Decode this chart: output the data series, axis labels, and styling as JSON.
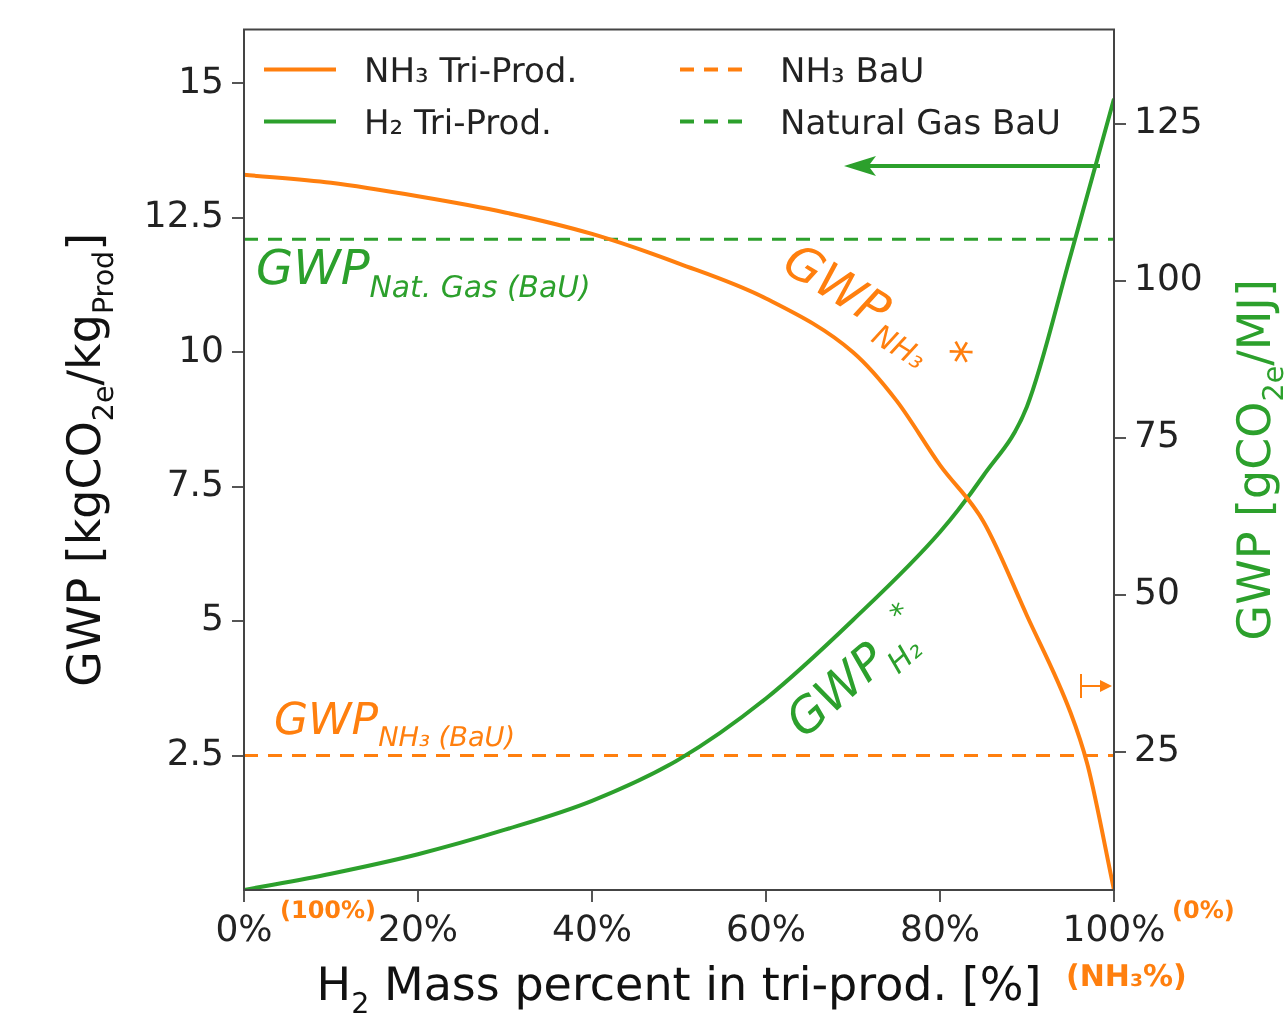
{
  "chart_data": {
    "type": "line",
    "xlabel": "H$_{2}$ Mass percent in tri-prod. [%]",
    "ylabel": "GWP [kgCO$_{2e}$/kg$_{Prod}$]",
    "y2label": "GWP [gCO$_{2e}$/MJ]",
    "series": [
      {
        "name": "NH₃ Tri-Prod.",
        "color": "#ff7f0e",
        "x": [
          0,
          10,
          20,
          30,
          40,
          50,
          60,
          70,
          75,
          80,
          85,
          90,
          95,
          97,
          100
        ],
        "values": [
          13.3,
          13.15,
          12.9,
          12.6,
          12.2,
          11.65,
          11.0,
          10.0,
          9.1,
          7.9,
          6.85,
          5.1,
          3.3,
          2.3,
          0
        ]
      },
      {
        "name": "H₂ Tri-Prod.",
        "color": "#2ca02c",
        "axis": "y2",
        "x": [
          0,
          10,
          20,
          30,
          40,
          50,
          60,
          70,
          80,
          85,
          90,
          95,
          100
        ],
        "values": [
          3,
          5.6,
          8.7,
          12.6,
          17.2,
          23.8,
          33.5,
          46,
          60,
          69,
          80,
          104,
          129
        ]
      }
    ],
    "ref_lines": [
      {
        "axis": "y",
        "value": 2.5,
        "label": "NH₃ BaU",
        "color": "#ff7f0e",
        "line_style": "dashed"
      },
      {
        "axis": "y",
        "value": 12.1,
        "label": "Natural Gas BaU",
        "color": "#2ca02c",
        "line_style": "dashed"
      }
    ],
    "annotations": [
      "GWP$_{Nat. Gas (BaU)}$",
      "GWP$_{NH₃}$ *",
      "GWP$_{H₂}$$^{*}$",
      "GWP$_{NH₃ (BaU)}$",
      "(100%)",
      "(0%)",
      "(NH₃%)"
    ],
    "xlim": [
      0,
      100
    ],
    "xticks": [
      {
        "value": 0,
        "label": "0%"
      },
      {
        "value": 20,
        "label": "20%"
      },
      {
        "value": 40,
        "label": "40%"
      },
      {
        "value": 60,
        "label": "60%"
      },
      {
        "value": 80,
        "label": "80%"
      },
      {
        "value": 100,
        "label": "100%"
      }
    ],
    "ylim": [
      0,
      16
    ],
    "yticks": [
      2.5,
      5,
      7.5,
      10,
      12.5,
      15
    ],
    "y2lim": [
      3,
      140
    ],
    "y2ticks": [
      25,
      50,
      75,
      100,
      125
    ],
    "legend": "top left",
    "line_style": "solid",
    "marker": "none"
  }
}
